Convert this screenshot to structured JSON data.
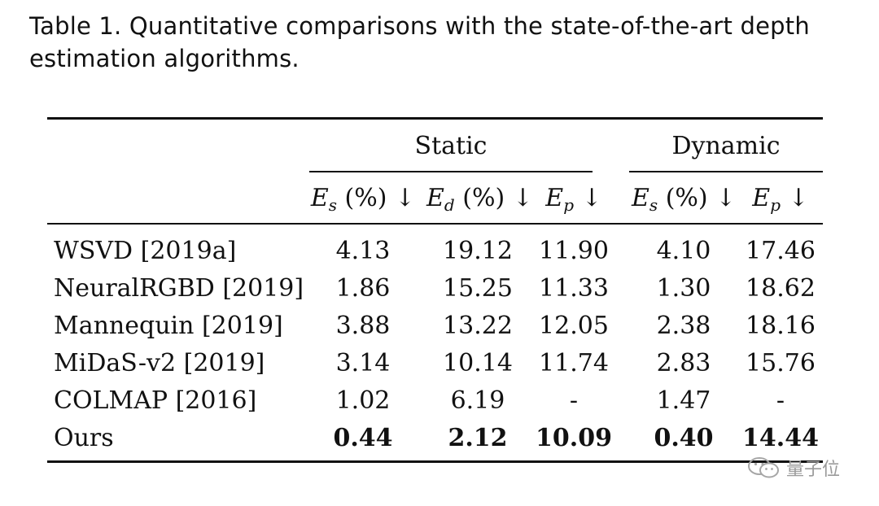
{
  "caption": "Table 1.  Quantitative comparisons with the state-of-the-art depth estimation algorithms.",
  "table": {
    "group_headers": {
      "static": "Static",
      "dynamic": "Dynamic"
    },
    "column_headers": [
      {
        "symbol": "E",
        "sub": "s",
        "suffix": " (%) ↓"
      },
      {
        "symbol": "E",
        "sub": "d",
        "suffix": " (%) ↓"
      },
      {
        "symbol": "E",
        "sub": "p",
        "suffix": " ↓"
      },
      {
        "symbol": "E",
        "sub": "s",
        "suffix": " (%) ↓"
      },
      {
        "symbol": "E",
        "sub": "p",
        "suffix": " ↓"
      }
    ],
    "rows": [
      {
        "method": "WSVD [2019a]",
        "values": [
          "4.13",
          "19.12",
          "11.90",
          "4.10",
          "17.46"
        ]
      },
      {
        "method": "NeuralRGBD [2019]",
        "values": [
          "1.86",
          "15.25",
          "11.33",
          "1.30",
          "18.62"
        ]
      },
      {
        "method": "Mannequin [2019]",
        "values": [
          "3.88",
          "13.22",
          "12.05",
          "2.38",
          "18.16"
        ]
      },
      {
        "method": "MiDaS-v2 [2019]",
        "values": [
          "3.14",
          "10.14",
          "11.74",
          "2.83",
          "15.76"
        ]
      },
      {
        "method": "COLMAP [2016]",
        "values": [
          "1.02",
          "6.19",
          "-",
          "1.47",
          "-"
        ]
      },
      {
        "method": "Ours",
        "values": [
          "0.44",
          "2.12",
          "10.09",
          "0.40",
          "14.44"
        ],
        "bold": true
      }
    ]
  },
  "watermark": {
    "text": "量子位",
    "icon": "wechat-icon"
  }
}
